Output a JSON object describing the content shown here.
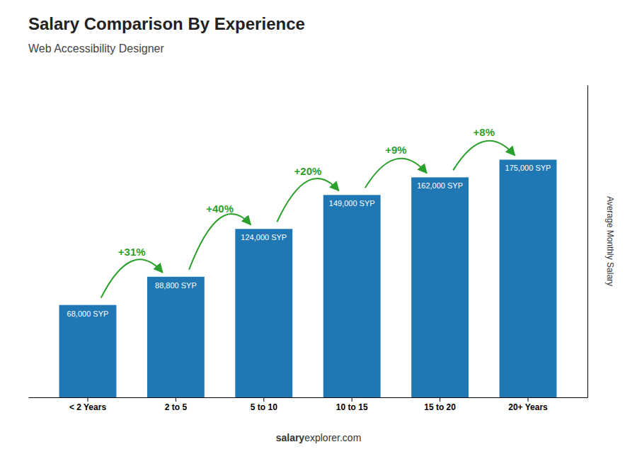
{
  "chart_data": {
    "type": "bar",
    "title": "Salary Comparison By Experience",
    "subtitle": "Web Accessibility Designer",
    "y_label": "Average Monthly Salary",
    "categories": [
      "< 2 Years",
      "2 to 5",
      "5 to 10",
      "10 to 15",
      "15 to 20",
      "20+ Years"
    ],
    "values": [
      68000,
      88800,
      124000,
      149000,
      162000,
      175000
    ],
    "value_labels": [
      "68,000 SYP",
      "88,800 SYP",
      "124,000 SYP",
      "149,000 SYP",
      "162,000 SYP",
      "175,000 SYP"
    ],
    "data_labels": true,
    "annotations": [
      "+31%",
      "+40%",
      "+20%",
      "+9%",
      "+8%"
    ],
    "footer": [
      "salary",
      "explorer.com"
    ],
    "ylim": [
      0,
      230000
    ],
    "tick_labels": "x",
    "grid": false
  }
}
